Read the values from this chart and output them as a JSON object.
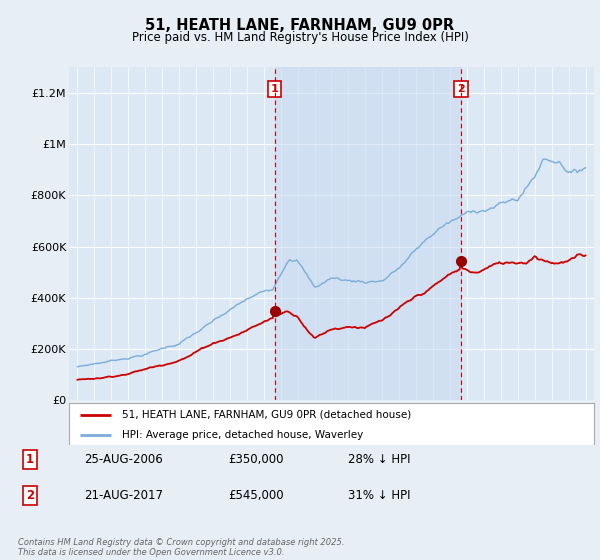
{
  "title": "51, HEATH LANE, FARNHAM, GU9 0PR",
  "subtitle": "Price paid vs. HM Land Registry's House Price Index (HPI)",
  "background_color": "#e8eef5",
  "plot_bg_color": "#dce8f4",
  "shaded_region_color": "#c8daf0",
  "ylim": [
    0,
    1300000
  ],
  "yticks": [
    0,
    200000,
    400000,
    600000,
    800000,
    1000000,
    1200000
  ],
  "ytick_labels": [
    "£0",
    "£200K",
    "£400K",
    "£600K",
    "£800K",
    "£1M",
    "£1.2M"
  ],
  "xtick_start_year": 1995,
  "xtick_end_year": 2025,
  "sale1_year": 2006.65,
  "sale1_price": 350000,
  "sale2_year": 2017.65,
  "sale2_price": 545000,
  "red_line_color": "#cc0000",
  "blue_line_color": "#7aadda",
  "dashed_line_color": "#cc0000",
  "marker_color": "#990000",
  "legend_label_red": "51, HEATH LANE, FARNHAM, GU9 0PR (detached house)",
  "legend_label_blue": "HPI: Average price, detached house, Waverley",
  "footnote": "Contains HM Land Registry data © Crown copyright and database right 2025.\nThis data is licensed under the Open Government Licence v3.0.",
  "sale_table": [
    {
      "num": "1",
      "date": "25-AUG-2006",
      "price": "£350,000",
      "pct": "28% ↓ HPI"
    },
    {
      "num": "2",
      "date": "21-AUG-2017",
      "price": "£545,000",
      "pct": "31% ↓ HPI"
    }
  ]
}
